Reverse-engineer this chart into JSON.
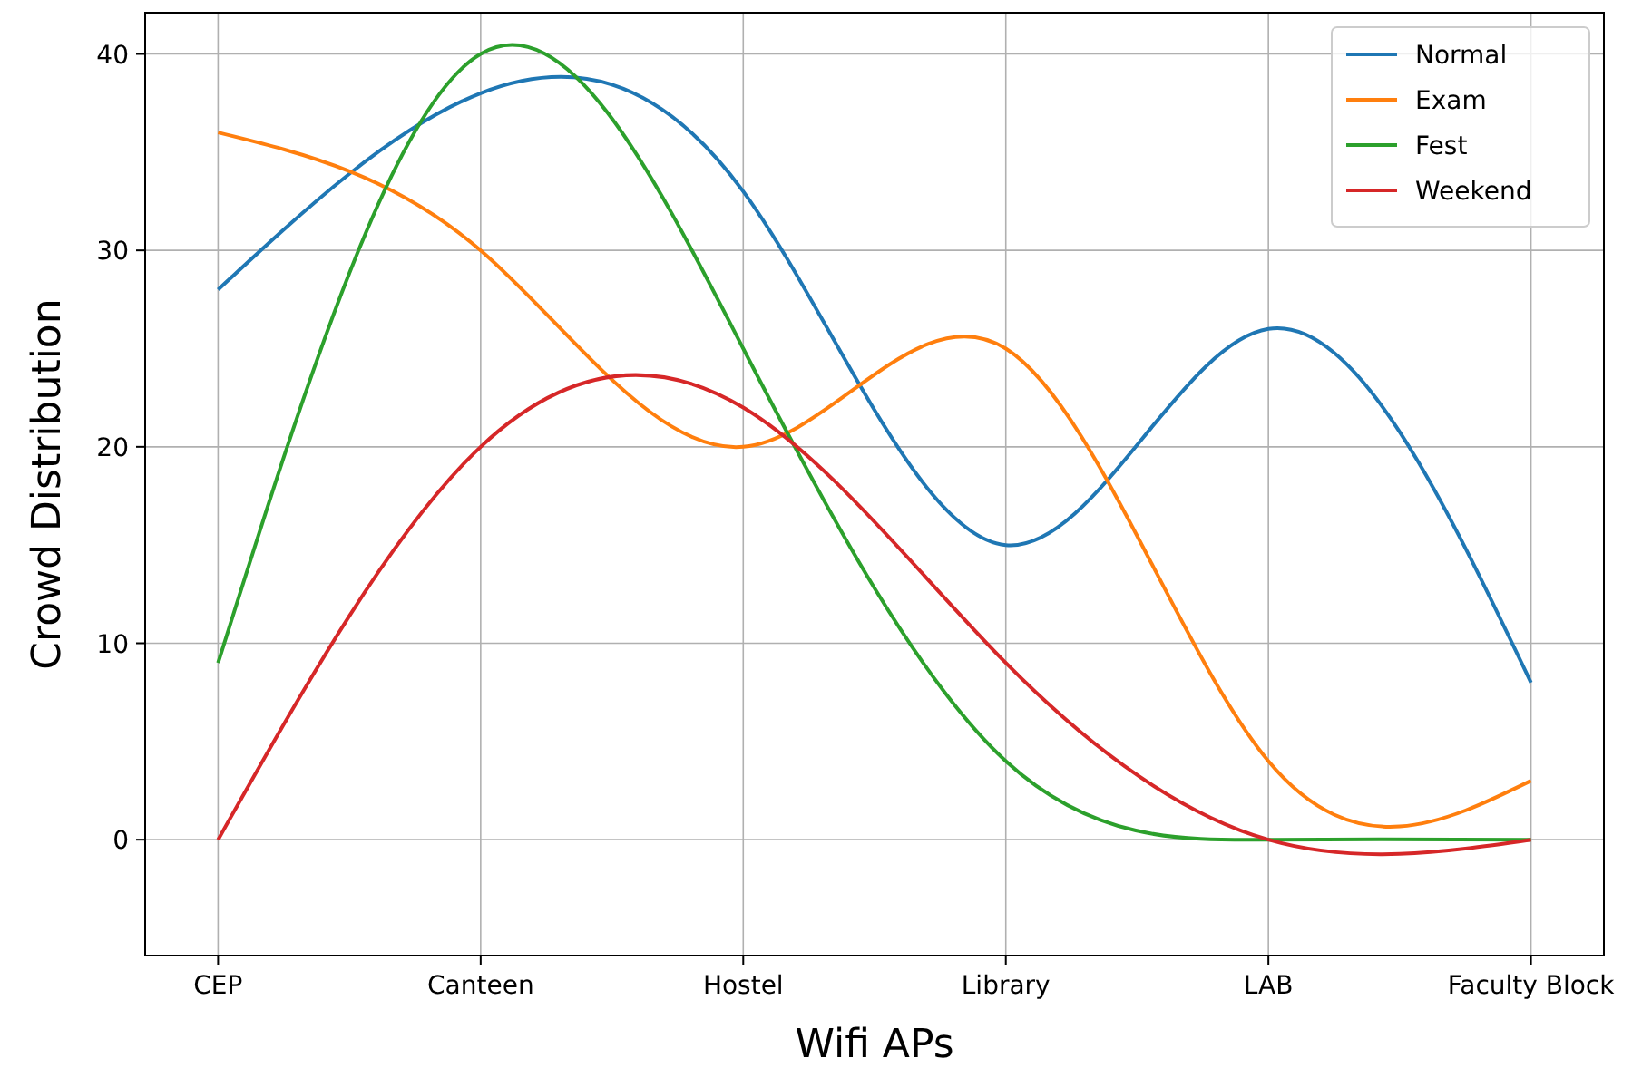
{
  "chart_data": {
    "type": "line",
    "xlabel": "Wifi APs",
    "ylabel": "Crowd Distribution",
    "categories": [
      "CEP",
      "Canteen",
      "Hostel",
      "Library",
      "LAB",
      "Faculty Block"
    ],
    "series": [
      {
        "name": "Normal",
        "color": "#1f77b4",
        "values": [
          28,
          38,
          33,
          15,
          26,
          8
        ]
      },
      {
        "name": "Exam",
        "color": "#ff7f0e",
        "values": [
          36,
          30,
          20,
          25,
          4,
          3
        ]
      },
      {
        "name": "Fest",
        "color": "#2ca02c",
        "values": [
          9,
          40,
          25,
          4,
          0,
          0
        ]
      },
      {
        "name": "Weekend",
        "color": "#d62728",
        "values": [
          0,
          20,
          22,
          9,
          0,
          0
        ]
      }
    ],
    "ylim": [
      -5.9,
      42.1
    ],
    "yticks": [
      0,
      10,
      20,
      30,
      40
    ],
    "grid": true,
    "legend": "top right",
    "marker": "none",
    "line_style": "solid"
  }
}
